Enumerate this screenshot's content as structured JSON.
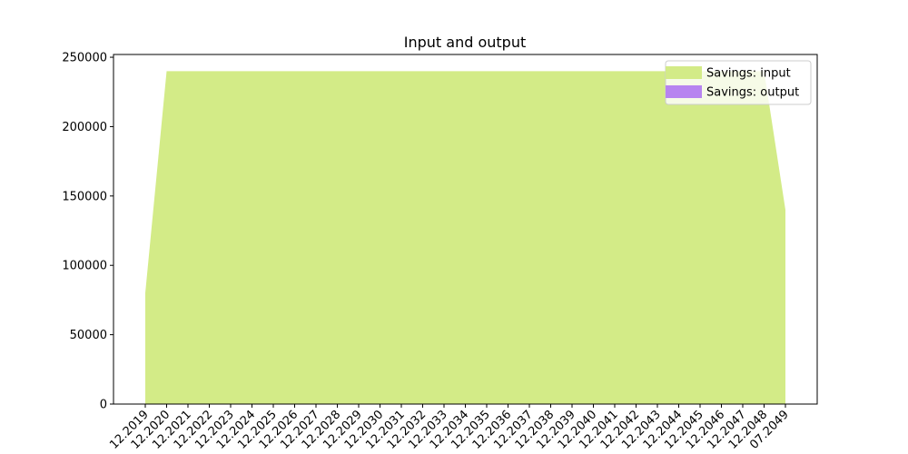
{
  "chart_data": {
    "type": "area",
    "title": "Input and output",
    "xlabel": "",
    "ylabel": "",
    "x": [
      "12.2019",
      "12.2020",
      "12.2021",
      "12.2022",
      "12.2023",
      "12.2024",
      "12.2025",
      "12.2026",
      "12.2027",
      "12.2028",
      "12.2029",
      "12.2030",
      "12.2031",
      "12.2032",
      "12.2033",
      "12.2034",
      "12.2035",
      "12.2036",
      "12.2037",
      "12.2038",
      "12.2039",
      "12.2040",
      "12.2041",
      "12.2042",
      "12.2043",
      "12.2044",
      "12.2045",
      "12.2046",
      "12.2047",
      "12.2048",
      "07.2049"
    ],
    "series": [
      {
        "name": "Savings: input",
        "color": "#d3eb87",
        "values": [
          80000,
          240000,
          240000,
          240000,
          240000,
          240000,
          240000,
          240000,
          240000,
          240000,
          240000,
          240000,
          240000,
          240000,
          240000,
          240000,
          240000,
          240000,
          240000,
          240000,
          240000,
          240000,
          240000,
          240000,
          240000,
          240000,
          240000,
          240000,
          240000,
          240000,
          140000
        ]
      },
      {
        "name": "Savings: output",
        "color": "#b784f0",
        "values": [
          0,
          0,
          0,
          0,
          0,
          0,
          0,
          0,
          0,
          0,
          0,
          0,
          0,
          0,
          0,
          0,
          0,
          0,
          0,
          0,
          0,
          0,
          0,
          0,
          0,
          0,
          0,
          0,
          0,
          0,
          0
        ]
      }
    ],
    "yticks": [
      0,
      50000,
      100000,
      150000,
      200000,
      250000
    ],
    "ylim": [
      0,
      252000
    ],
    "grid": false,
    "legend": "top-right"
  }
}
